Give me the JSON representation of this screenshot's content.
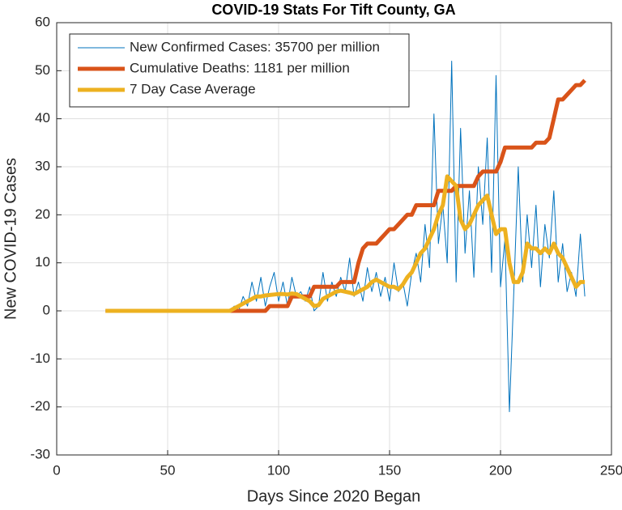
{
  "chart_data": {
    "type": "line",
    "title": "COVID-19 Stats For Tift County, GA",
    "xlabel": "Days Since 2020 Began",
    "ylabel": "New COVID-19 Cases",
    "x": [
      22,
      24,
      26,
      28,
      30,
      32,
      34,
      36,
      38,
      40,
      42,
      44,
      46,
      48,
      50,
      52,
      54,
      56,
      58,
      60,
      62,
      64,
      66,
      68,
      70,
      72,
      74,
      76,
      78,
      80,
      82,
      84,
      86,
      88,
      90,
      92,
      94,
      96,
      98,
      100,
      102,
      104,
      106,
      108,
      110,
      112,
      114,
      116,
      118,
      120,
      122,
      124,
      126,
      128,
      130,
      132,
      134,
      136,
      138,
      140,
      142,
      144,
      146,
      148,
      150,
      152,
      154,
      156,
      158,
      160,
      162,
      164,
      166,
      168,
      170,
      172,
      174,
      176,
      178,
      180,
      182,
      184,
      186,
      188,
      190,
      192,
      194,
      196,
      198,
      200,
      202,
      204,
      206,
      208,
      210,
      212,
      214,
      216,
      218,
      220,
      222,
      224,
      226,
      228,
      230,
      232,
      234,
      236,
      238
    ],
    "series": [
      {
        "name": "New Confirmed Cases: 35700 per million",
        "color": "#0072bd",
        "width": 1,
        "values": [
          0,
          0,
          0,
          0,
          0,
          0,
          0,
          0,
          0,
          0,
          0,
          0,
          0,
          0,
          0,
          0,
          0,
          0,
          0,
          0,
          0,
          0,
          0,
          0,
          0,
          0,
          0,
          0,
          0,
          1,
          0,
          3,
          1,
          6,
          2,
          7,
          1,
          5,
          8,
          2,
          6,
          1,
          7,
          3,
          4,
          2,
          5,
          0,
          1,
          8,
          2,
          6,
          3,
          7,
          4,
          11,
          3,
          6,
          2,
          9,
          4,
          8,
          3,
          7,
          2,
          10,
          4,
          6,
          1,
          8,
          12,
          6,
          18,
          9,
          41,
          14,
          22,
          10,
          52,
          6,
          38,
          12,
          25,
          7,
          30,
          18,
          36,
          8,
          49,
          5,
          15,
          -21,
          4,
          30,
          6,
          20,
          9,
          22,
          5,
          18,
          11,
          25,
          6,
          14,
          4,
          8,
          3,
          16,
          3
        ]
      },
      {
        "name": "Cumulative Deaths: 1181 per million",
        "color": "#d95319",
        "width": 5,
        "values": [
          0,
          0,
          0,
          0,
          0,
          0,
          0,
          0,
          0,
          0,
          0,
          0,
          0,
          0,
          0,
          0,
          0,
          0,
          0,
          0,
          0,
          0,
          0,
          0,
          0,
          0,
          0,
          0,
          0,
          0,
          0,
          0,
          0,
          0,
          0,
          0,
          0,
          1,
          1,
          1,
          1,
          1,
          3,
          3,
          3,
          3,
          3,
          5,
          5,
          5,
          5,
          5,
          5,
          6,
          6,
          6,
          6,
          10,
          13,
          14,
          14,
          14,
          15,
          16,
          17,
          17,
          18,
          19,
          20,
          20,
          22,
          22,
          22,
          22,
          22,
          25,
          25,
          25,
          25,
          26,
          26,
          26,
          26,
          26,
          28,
          29,
          29,
          29,
          29,
          31,
          34,
          34,
          34,
          34,
          34,
          34,
          34,
          35,
          35,
          35,
          36,
          40,
          44,
          44,
          45,
          46,
          47,
          47,
          48
        ]
      },
      {
        "name": "7 Day Case Average",
        "color": "#edb120",
        "width": 5,
        "values": [
          0,
          0,
          0,
          0,
          0,
          0,
          0,
          0,
          0,
          0,
          0,
          0,
          0,
          0,
          0,
          0,
          0,
          0,
          0,
          0,
          0,
          0,
          0,
          0,
          0,
          0,
          0,
          0,
          0,
          0.5,
          1,
          1.5,
          2,
          2.5,
          3,
          3,
          3.2,
          3.3,
          3.4,
          3.5,
          3.5,
          3.4,
          3.6,
          3.5,
          3,
          2.5,
          2,
          1,
          1.2,
          2.5,
          3,
          3.5,
          4,
          4.2,
          4,
          3.8,
          3.5,
          4,
          4.5,
          5,
          6,
          6.5,
          6,
          5.5,
          5,
          5,
          4.5,
          5.5,
          7,
          8,
          10,
          12,
          13,
          15,
          17,
          20,
          22,
          28,
          27,
          26,
          19,
          17,
          18,
          20,
          22,
          23,
          24,
          20,
          16,
          17,
          17,
          10,
          6,
          6,
          8,
          14,
          13,
          13,
          12,
          13,
          12,
          14,
          12,
          11,
          9,
          7,
          5,
          6,
          6
        ]
      }
    ],
    "xlim": [
      0,
      250
    ],
    "xticks": [
      0,
      50,
      100,
      150,
      200,
      250
    ],
    "ylim": [
      -30,
      60
    ],
    "yticks": [
      -30,
      -20,
      -10,
      0,
      10,
      20,
      30,
      40,
      50,
      60
    ],
    "grid": true,
    "legend": "upper left"
  }
}
